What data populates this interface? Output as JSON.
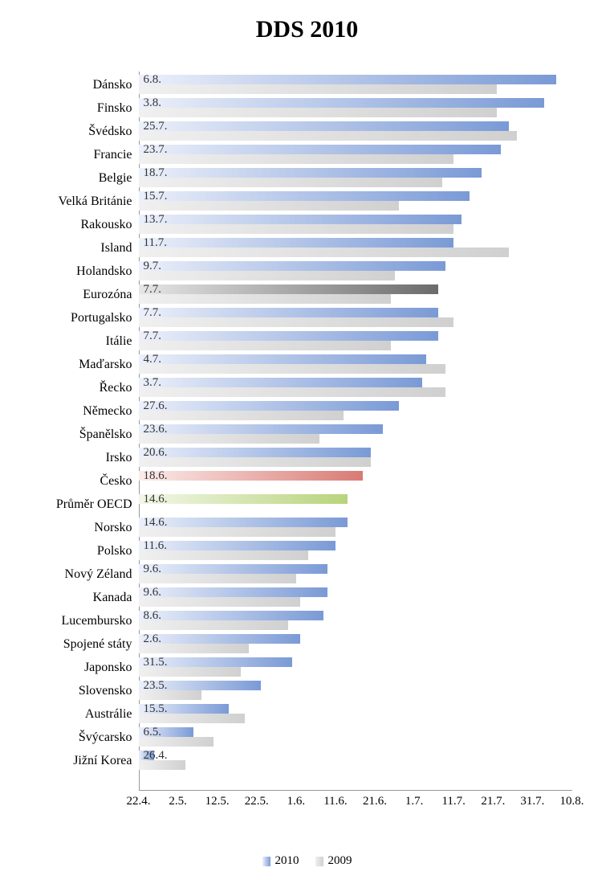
{
  "title": "DDS 2010",
  "chart": {
    "type": "bar-horizontal-grouped",
    "day_min": 112,
    "day_max": 222,
    "x_ticks": [
      {
        "label": "22.4.",
        "day": 112
      },
      {
        "label": "2.5.",
        "day": 122
      },
      {
        "label": "12.5.",
        "day": 132
      },
      {
        "label": "22.5.",
        "day": 142
      },
      {
        "label": "1.6.",
        "day": 152
      },
      {
        "label": "11.6.",
        "day": 162
      },
      {
        "label": "21.6.",
        "day": 172
      },
      {
        "label": "1.7.",
        "day": 182
      },
      {
        "label": "11.7.",
        "day": 192
      },
      {
        "label": "21.7.",
        "day": 202
      },
      {
        "label": "31.7.",
        "day": 212
      },
      {
        "label": "10.8.",
        "day": 222
      }
    ],
    "gradient_blue_start": "#ecf0fa",
    "gradient_blue_end": "#7a9ad6",
    "gradient_grey_start": "#f0f0f0",
    "gradient_grey_end": "#d0d0d0",
    "gradient_dark_start": "#e6e6e6",
    "gradient_dark_end": "#6b6b6b",
    "gradient_red_start": "#fbeceb",
    "gradient_red_end": "#d97a74",
    "gradient_green_start": "#f3f7e8",
    "gradient_green_end": "#b7d47b",
    "axis_color": "#999999",
    "label_color": "#000000",
    "rows": [
      {
        "name": "Dánsko",
        "label": "6.8.",
        "v2010": 218,
        "v2009": 203,
        "style": "blue"
      },
      {
        "name": "Finsko",
        "label": "3.8.",
        "v2010": 215,
        "v2009": 203,
        "style": "blue"
      },
      {
        "name": "Švédsko",
        "label": "25.7.",
        "v2010": 206,
        "v2009": 208,
        "style": "blue"
      },
      {
        "name": "Francie",
        "label": "23.7.",
        "v2010": 204,
        "v2009": 192,
        "style": "blue"
      },
      {
        "name": "Belgie",
        "label": "18.7.",
        "v2010": 199,
        "v2009": 189,
        "style": "blue"
      },
      {
        "name": "Velká Británie",
        "label": "15.7.",
        "v2010": 196,
        "v2009": 178,
        "style": "blue"
      },
      {
        "name": "Rakousko",
        "label": "13.7.",
        "v2010": 194,
        "v2009": 192,
        "style": "blue"
      },
      {
        "name": "Island",
        "label": "11.7.",
        "v2010": 192,
        "v2009": 206,
        "style": "blue"
      },
      {
        "name": "Holandsko",
        "label": "9.7.",
        "v2010": 190,
        "v2009": 177,
        "style": "blue"
      },
      {
        "name": "Eurozóna",
        "label": "7.7.",
        "v2010": 188,
        "v2009": 176,
        "style": "dark"
      },
      {
        "name": "Portugalsko",
        "label": "7.7.",
        "v2010": 188,
        "v2009": 192,
        "style": "blue"
      },
      {
        "name": "Itálie",
        "label": "7.7.",
        "v2010": 188,
        "v2009": 176,
        "style": "blue"
      },
      {
        "name": "Maďarsko",
        "label": "4.7.",
        "v2010": 185,
        "v2009": 190,
        "style": "blue"
      },
      {
        "name": "Řecko",
        "label": "3.7.",
        "v2010": 184,
        "v2009": 190,
        "style": "blue"
      },
      {
        "name": "Německo",
        "label": "27.6.",
        "v2010": 178,
        "v2009": 164,
        "style": "blue"
      },
      {
        "name": "Španělsko",
        "label": "23.6.",
        "v2010": 174,
        "v2009": 158,
        "style": "blue"
      },
      {
        "name": "Irsko",
        "label": "20.6.",
        "v2010": 171,
        "v2009": 171,
        "style": "blue"
      },
      {
        "name": "Česko",
        "label": "18.6.",
        "v2010": 169,
        "v2009": null,
        "style": "red"
      },
      {
        "name": "Průměr OECD",
        "label": "14.6.",
        "v2010": 165,
        "v2009": null,
        "style": "green"
      },
      {
        "name": "Norsko",
        "label": "14.6.",
        "v2010": 165,
        "v2009": 162,
        "style": "blue"
      },
      {
        "name": "Polsko",
        "label": "11.6.",
        "v2010": 162,
        "v2009": 155,
        "style": "blue"
      },
      {
        "name": "Nový Zéland",
        "label": "9.6.",
        "v2010": 160,
        "v2009": 152,
        "style": "blue"
      },
      {
        "name": "Kanada",
        "label": "9.6.",
        "v2010": 160,
        "v2009": 153,
        "style": "blue"
      },
      {
        "name": "Lucembursko",
        "label": "8.6.",
        "v2010": 159,
        "v2009": 150,
        "style": "blue"
      },
      {
        "name": "Spojené státy",
        "label": "2.6.",
        "v2010": 153,
        "v2009": 140,
        "style": "blue"
      },
      {
        "name": "Japonsko",
        "label": "31.5.",
        "v2010": 151,
        "v2009": 138,
        "style": "blue"
      },
      {
        "name": "Slovensko",
        "label": "23.5.",
        "v2010": 143,
        "v2009": 128,
        "style": "blue"
      },
      {
        "name": "Austrálie",
        "label": "15.5.",
        "v2010": 135,
        "v2009": 139,
        "style": "blue"
      },
      {
        "name": "Švýcarsko",
        "label": "6.5.",
        "v2010": 126,
        "v2009": 131,
        "style": "blue"
      },
      {
        "name": "Jižní Korea",
        "label": "26.4.",
        "v2010": 116,
        "v2009": 124,
        "style": "blue"
      }
    ]
  },
  "legend": {
    "items": [
      {
        "label": "2010",
        "color1": "#ecf0fa",
        "color2": "#7a9ad6"
      },
      {
        "label": "2009",
        "color1": "#f0f0f0",
        "color2": "#d0d0d0"
      }
    ]
  }
}
